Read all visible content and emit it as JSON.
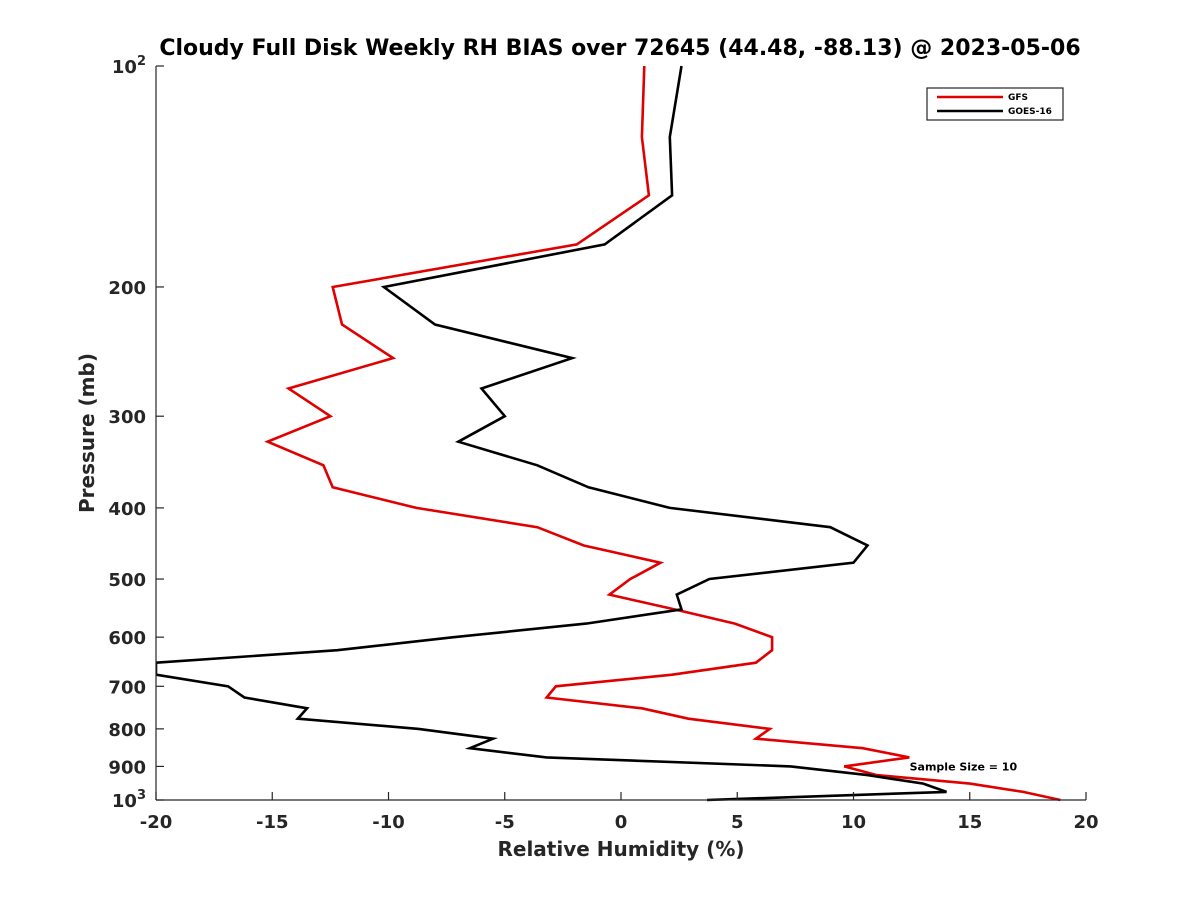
{
  "chart_data": {
    "type": "line",
    "title": "Cloudy Full Disk Weekly RH BIAS over 72645 (44.48, -88.13) @ 2023-05-06",
    "xlabel": "Relative Humidity (%)",
    "ylabel": "Pressure (mb)",
    "xlim": [
      -20,
      20
    ],
    "ylim": [
      100,
      1000
    ],
    "yscale": "log",
    "yaxis_reversed": true,
    "xticks": [
      -20,
      -15,
      -10,
      -5,
      0,
      5,
      10,
      15,
      20
    ],
    "xtick_labels": [
      "-20",
      "-15",
      "-10",
      "-5",
      "0",
      "5",
      "10",
      "15",
      "20"
    ],
    "yticks": [
      100,
      200,
      300,
      400,
      500,
      600,
      700,
      800,
      900,
      1000
    ],
    "ytick_labels": [
      {
        "base": "10",
        "exp": "2"
      },
      {
        "base": "200"
      },
      {
        "base": "300"
      },
      {
        "base": "400"
      },
      {
        "base": "500"
      },
      {
        "base": "600"
      },
      {
        "base": "700"
      },
      {
        "base": "800"
      },
      {
        "base": "900"
      },
      {
        "base": "10",
        "exp": "3"
      }
    ],
    "legend_position": "top-right",
    "annotation": "Sample Size = 10",
    "annotation_at": {
      "rh": 12.5,
      "pressure": 900
    },
    "series": [
      {
        "name": "GFS",
        "color": "#e00000",
        "points": [
          {
            "rh": 1.0,
            "p": 100
          },
          {
            "rh": 0.9,
            "p": 125
          },
          {
            "rh": 1.2,
            "p": 150
          },
          {
            "rh": -1.9,
            "p": 175
          },
          {
            "rh": -12.4,
            "p": 200
          },
          {
            "rh": -12.0,
            "p": 225
          },
          {
            "rh": -9.8,
            "p": 250
          },
          {
            "rh": -14.3,
            "p": 275
          },
          {
            "rh": -12.5,
            "p": 300
          },
          {
            "rh": -15.2,
            "p": 325
          },
          {
            "rh": -12.8,
            "p": 350
          },
          {
            "rh": -12.4,
            "p": 375
          },
          {
            "rh": -8.8,
            "p": 400
          },
          {
            "rh": -3.6,
            "p": 425
          },
          {
            "rh": -1.6,
            "p": 450
          },
          {
            "rh": 1.7,
            "p": 475
          },
          {
            "rh": 0.4,
            "p": 500
          },
          {
            "rh": -0.5,
            "p": 525
          },
          {
            "rh": 2.3,
            "p": 550
          },
          {
            "rh": 4.9,
            "p": 575
          },
          {
            "rh": 6.5,
            "p": 600
          },
          {
            "rh": 6.5,
            "p": 625
          },
          {
            "rh": 5.8,
            "p": 650
          },
          {
            "rh": 2.2,
            "p": 675
          },
          {
            "rh": -2.8,
            "p": 700
          },
          {
            "rh": -3.2,
            "p": 725
          },
          {
            "rh": 0.9,
            "p": 750
          },
          {
            "rh": 2.9,
            "p": 775
          },
          {
            "rh": 6.4,
            "p": 800
          },
          {
            "rh": 5.8,
            "p": 825
          },
          {
            "rh": 10.4,
            "p": 850
          },
          {
            "rh": 12.4,
            "p": 875
          },
          {
            "rh": 9.6,
            "p": 900
          },
          {
            "rh": 11.0,
            "p": 925
          },
          {
            "rh": 15.0,
            "p": 950
          },
          {
            "rh": 17.3,
            "p": 975
          },
          {
            "rh": 18.9,
            "p": 1000
          }
        ]
      },
      {
        "name": "GOES-16",
        "color": "#000000",
        "points": [
          {
            "rh": 2.6,
            "p": 100
          },
          {
            "rh": 2.1,
            "p": 125
          },
          {
            "rh": 2.2,
            "p": 150
          },
          {
            "rh": -0.7,
            "p": 175
          },
          {
            "rh": -10.2,
            "p": 200
          },
          {
            "rh": -8.0,
            "p": 225
          },
          {
            "rh": -2.1,
            "p": 250
          },
          {
            "rh": -6.0,
            "p": 275
          },
          {
            "rh": -5.0,
            "p": 300
          },
          {
            "rh": -7.0,
            "p": 325
          },
          {
            "rh": -3.6,
            "p": 350
          },
          {
            "rh": -1.4,
            "p": 375
          },
          {
            "rh": 2.1,
            "p": 400
          },
          {
            "rh": 9.0,
            "p": 425
          },
          {
            "rh": 10.6,
            "p": 450
          },
          {
            "rh": 10.0,
            "p": 475
          },
          {
            "rh": 3.8,
            "p": 500
          },
          {
            "rh": 2.4,
            "p": 525
          },
          {
            "rh": 2.6,
            "p": 550
          },
          {
            "rh": -1.5,
            "p": 575
          },
          {
            "rh": -7.2,
            "p": 600
          },
          {
            "rh": -12.2,
            "p": 625
          },
          {
            "rh": -20.0,
            "p": 650
          },
          {
            "rh": -20.0,
            "p": 675
          },
          {
            "rh": -16.9,
            "p": 700
          },
          {
            "rh": -16.2,
            "p": 725
          },
          {
            "rh": -13.5,
            "p": 750
          },
          {
            "rh": -13.9,
            "p": 775
          },
          {
            "rh": -8.7,
            "p": 800
          },
          {
            "rh": -5.5,
            "p": 825
          },
          {
            "rh": -6.5,
            "p": 850
          },
          {
            "rh": -3.2,
            "p": 875
          },
          {
            "rh": 7.3,
            "p": 900
          },
          {
            "rh": 10.6,
            "p": 925
          },
          {
            "rh": 13.0,
            "p": 950
          },
          {
            "rh": 14.0,
            "p": 975
          },
          {
            "rh": 3.7,
            "p": 1000
          }
        ]
      }
    ]
  }
}
